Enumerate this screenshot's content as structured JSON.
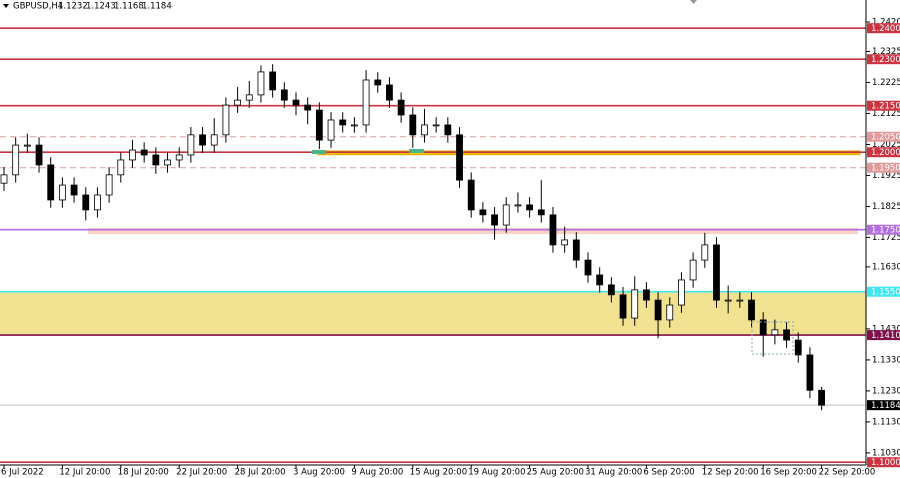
{
  "chart_data": {
    "type": "candlestick",
    "symbol": "GBPUSD,H4",
    "categories": [
      "6 Jul 2022",
      null,
      null,
      null,
      null,
      "12 Jul 20:00",
      null,
      null,
      null,
      null,
      "18 Jul 20:00",
      null,
      null,
      null,
      null,
      "22 Jul 20:00",
      null,
      null,
      null,
      null,
      "28 Jul 20:00",
      null,
      null,
      null,
      null,
      "3 Aug 20:00",
      null,
      null,
      null,
      null,
      "9 Aug 20:00",
      null,
      null,
      null,
      null,
      "15 Aug 20:00",
      null,
      null,
      null,
      null,
      "19 Aug 20:00",
      null,
      null,
      null,
      null,
      "25 Aug 20:00",
      null,
      null,
      null,
      null,
      "31 Aug 20:00",
      null,
      null,
      null,
      null,
      "6 Sep 20:00",
      null,
      null,
      null,
      null,
      "12 Sep 20:00",
      null,
      null,
      null,
      null,
      "16 Sep 20:00",
      null,
      null,
      null,
      null,
      "22 Sep 20:00"
    ],
    "open": [
      1.19,
      1.1927,
      1.2023,
      1.2023,
      1.1959,
      1.1846,
      1.1894,
      1.1862,
      1.1814,
      1.1862,
      1.1927,
      1.1975,
      1.2007,
      1.1991,
      1.1959,
      1.1975,
      1.1991,
      1.2056,
      1.2023,
      1.2056,
      1.2152,
      1.2168,
      1.2185,
      1.2259,
      1.2201,
      1.2168,
      1.2152,
      1.2136,
      1.2039,
      1.2104,
      1.2088,
      1.2088,
      1.2233,
      1.2217,
      1.2168,
      1.212,
      1.2056,
      1.2088,
      1.2088,
      1.2056,
      1.191,
      1.1814,
      1.1798,
      1.1765,
      1.183,
      1.183,
      1.1814,
      1.1798,
      1.1701,
      1.1717,
      1.1652,
      1.1604,
      1.1572,
      1.154,
      1.1465,
      1.1556,
      1.1523,
      1.1459,
      1.1507,
      1.1588,
      1.1652,
      1.1701,
      1.1523,
      1.1523,
      1.1523,
      1.1459,
      1.1411,
      1.1427,
      1.1394,
      1.1346,
      1.1232
    ],
    "high": [
      1.1952,
      1.2048,
      1.206,
      1.2048,
      1.1984,
      1.1919,
      1.1919,
      1.1887,
      1.1887,
      1.1952,
      1.2,
      1.204,
      1.2032,
      1.2016,
      1.2,
      1.2016,
      1.2081,
      1.2081,
      1.211,
      1.2177,
      1.221,
      1.223,
      1.228,
      1.2284,
      1.2226,
      1.2193,
      1.2177,
      1.2161,
      1.2129,
      1.2129,
      1.2113,
      1.2265,
      1.2258,
      1.2242,
      1.2193,
      1.2145,
      1.214,
      1.2113,
      1.2113,
      1.2081,
      1.1935,
      1.1839,
      1.1823,
      1.1855,
      1.187,
      1.1855,
      1.191,
      1.1823,
      1.176,
      1.1742,
      1.1677,
      1.1629,
      1.1597,
      1.1565,
      1.16,
      1.1581,
      1.1548,
      1.1532,
      1.1613,
      1.1677,
      1.174,
      1.1726,
      1.157,
      1.1548,
      1.1548,
      1.1484,
      1.146,
      1.1452,
      1.1419,
      1.1371,
      1.1243
    ],
    "low": [
      1.1875,
      1.1902,
      1.1998,
      1.1934,
      1.1821,
      1.1821,
      1.1837,
      1.178,
      1.1789,
      1.1837,
      1.1902,
      1.195,
      1.1966,
      1.193,
      1.1934,
      1.195,
      1.1966,
      1.1998,
      1.1998,
      1.2031,
      1.2127,
      1.2143,
      1.216,
      1.2176,
      1.2143,
      1.212,
      1.209,
      1.201,
      1.2014,
      1.2063,
      1.2063,
      1.2063,
      1.2192,
      1.2143,
      1.2095,
      1.2014,
      1.2031,
      1.2063,
      1.2031,
      1.1885,
      1.1789,
      1.1773,
      1.1718,
      1.174,
      1.1805,
      1.1789,
      1.1773,
      1.1676,
      1.1676,
      1.1627,
      1.1579,
      1.1547,
      1.1515,
      1.144,
      1.144,
      1.1498,
      1.14,
      1.1434,
      1.1482,
      1.1563,
      1.1627,
      1.1498,
      1.148,
      1.1498,
      1.1434,
      1.134,
      1.138,
      1.1369,
      1.1321,
      1.1207,
      1.1168
    ],
    "close": [
      1.1927,
      1.2023,
      1.2023,
      1.1959,
      1.1846,
      1.1894,
      1.1862,
      1.1814,
      1.1862,
      1.1927,
      1.1975,
      1.2007,
      1.1991,
      1.1959,
      1.1975,
      1.1991,
      1.2056,
      1.2023,
      1.2056,
      1.2152,
      1.2168,
      1.2185,
      1.2259,
      1.2201,
      1.2168,
      1.2152,
      1.2136,
      1.2039,
      1.2104,
      1.2088,
      1.2088,
      1.2233,
      1.2217,
      1.2168,
      1.212,
      1.2056,
      1.2088,
      1.2088,
      1.2056,
      1.191,
      1.1814,
      1.1798,
      1.1765,
      1.183,
      1.183,
      1.1814,
      1.1798,
      1.1701,
      1.1717,
      1.1652,
      1.1604,
      1.1572,
      1.154,
      1.1465,
      1.1556,
      1.1523,
      1.1459,
      1.1507,
      1.1588,
      1.1652,
      1.1701,
      1.1523,
      1.1523,
      1.1523,
      1.1459,
      1.1411,
      1.1427,
      1.1394,
      1.1346,
      1.1232,
      1.1184
    ],
    "bull_color": "#ffffff",
    "bear_color": "#000000",
    "wick_color": "#000000",
    "ylim": [
      1.0991,
      1.2491
    ],
    "yticks": [
      {
        "value": 1.242,
        "label": "1.2420"
      },
      {
        "value": 1.2325,
        "label": "1.2325"
      },
      {
        "value": 1.2225,
        "label": "1.2225"
      },
      {
        "value": 1.2125,
        "label": "1.2125"
      },
      {
        "value": 1.2025,
        "label": "1.2025"
      },
      {
        "value": 1.1925,
        "label": "1.1925"
      },
      {
        "value": 1.1825,
        "label": "1.1825"
      },
      {
        "value": 1.1725,
        "label": "1.1725"
      },
      {
        "value": 1.163,
        "label": "1.1630"
      },
      {
        "value": 1.143,
        "label": "1.1430"
      },
      {
        "value": 1.133,
        "label": "1.1330"
      },
      {
        "value": 1.123,
        "label": "1.1230"
      },
      {
        "value": 1.113,
        "label": "1.1130"
      },
      {
        "value": 1.103,
        "label": "1.1030"
      }
    ],
    "levels": [
      {
        "value": 1.24,
        "label": "1.2400",
        "color": "#cc3340",
        "dashed": false
      },
      {
        "value": 1.23,
        "label": "1.2300",
        "color": "#cc3340",
        "dashed": false
      },
      {
        "value": 1.215,
        "label": "1.2150",
        "color": "#cc3340",
        "dashed": false
      },
      {
        "value": 1.205,
        "label": "1.2050",
        "color": "#e09a9a",
        "dashed": true
      },
      {
        "value": 1.2,
        "label": "1.2000",
        "color": "#cc3340",
        "dashed": false
      },
      {
        "value": 1.195,
        "label": "1.1950",
        "color": "#e09a9a",
        "dashed": true
      },
      {
        "value": 1.175,
        "label": "1.1750",
        "color": "#b26ee0",
        "dashed": false
      },
      {
        "value": 1.155,
        "label": "1.1550",
        "color": "#3fe6f2",
        "dashed": false
      },
      {
        "value": 1.141,
        "label": "1.1410",
        "color": "#80104a",
        "dashed": false
      },
      {
        "value": 1.1,
        "label": "1.1000",
        "color": "#cc3340",
        "dashed": false
      }
    ],
    "zones": [
      {
        "from": 1.155,
        "to": 1.141,
        "color": "#f0e290"
      },
      {
        "from": 1.2004,
        "to": 1.1992,
        "color": "#f6c800"
      },
      {
        "from": 1.1756,
        "to": 1.1736,
        "color": "#f8d2c4"
      }
    ]
  }
}
